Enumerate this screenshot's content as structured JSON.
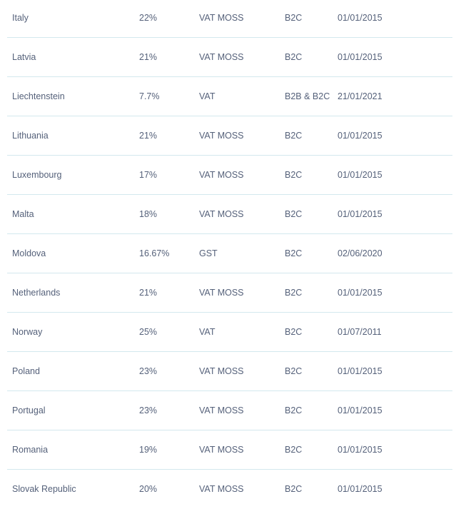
{
  "table": {
    "rows": [
      {
        "country": "Italy",
        "rate": "22%",
        "tax": "VAT MOSS",
        "type": "B2C",
        "date": "01/01/2015"
      },
      {
        "country": "Latvia",
        "rate": "21%",
        "tax": "VAT MOSS",
        "type": "B2C",
        "date": "01/01/2015"
      },
      {
        "country": "Liechtenstein",
        "rate": "7.7%",
        "tax": "VAT",
        "type": "B2B & B2C",
        "date": "21/01/2021"
      },
      {
        "country": "Lithuania",
        "rate": "21%",
        "tax": "VAT MOSS",
        "type": "B2C",
        "date": "01/01/2015"
      },
      {
        "country": "Luxembourg",
        "rate": "17%",
        "tax": "VAT MOSS",
        "type": "B2C",
        "date": "01/01/2015"
      },
      {
        "country": "Malta",
        "rate": "18%",
        "tax": "VAT MOSS",
        "type": "B2C",
        "date": "01/01/2015"
      },
      {
        "country": "Moldova",
        "rate": "16.67%",
        "tax": "GST",
        "type": "B2C",
        "date": "02/06/2020"
      },
      {
        "country": "Netherlands",
        "rate": "21%",
        "tax": "VAT MOSS",
        "type": "B2C",
        "date": "01/01/2015"
      },
      {
        "country": "Norway",
        "rate": "25%",
        "tax": "VAT",
        "type": "B2C",
        "date": "01/07/2011"
      },
      {
        "country": "Poland",
        "rate": "23%",
        "tax": "VAT MOSS",
        "type": "B2C",
        "date": "01/01/2015"
      },
      {
        "country": "Portugal",
        "rate": "23%",
        "tax": "VAT MOSS",
        "type": "B2C",
        "date": "01/01/2015"
      },
      {
        "country": "Romania",
        "rate": "19%",
        "tax": "VAT MOSS",
        "type": "B2C",
        "date": "01/01/2015"
      },
      {
        "country": "Slovak Republic",
        "rate": "20%",
        "tax": "VAT MOSS",
        "type": "B2C",
        "date": "01/01/2015"
      }
    ]
  }
}
